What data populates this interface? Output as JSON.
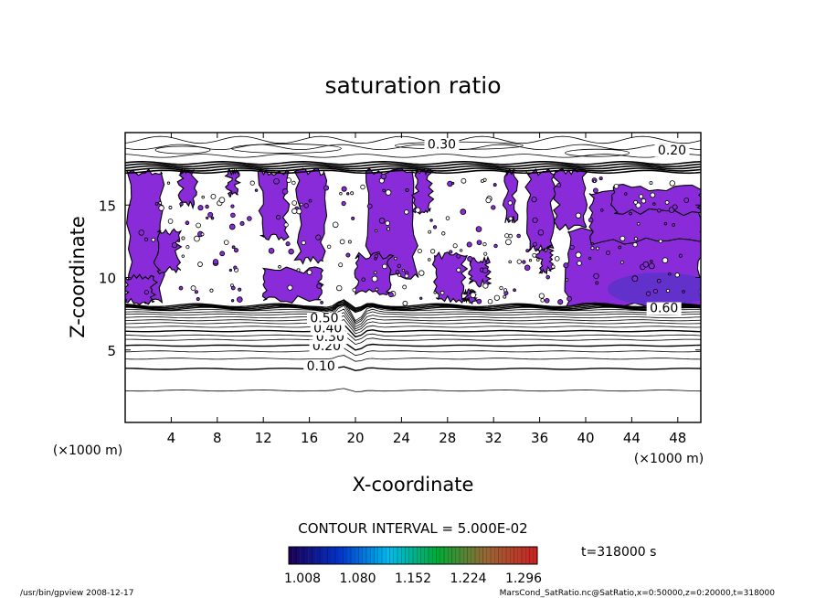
{
  "chart_data": {
    "type": "heatmap",
    "title": "saturation ratio",
    "xlabel": "X-coordinate",
    "ylabel": "Z-coordinate",
    "x_unit": "(×1000 m)",
    "z_unit": "(×1000 m)",
    "xlim": [
      0,
      50
    ],
    "ylim": [
      0,
      20
    ],
    "x_ticks": [
      4,
      8,
      12,
      16,
      20,
      24,
      28,
      32,
      36,
      40,
      44,
      48
    ],
    "y_ticks": [
      5,
      10,
      15
    ],
    "contour_interval_text": "CONTOUR INTERVAL = 5.000E-02",
    "contour_labels": [
      "0.30",
      "0.20",
      "0.10",
      "0.20",
      "0.30",
      "0.40",
      "0.50",
      "0.60"
    ],
    "colorbar": {
      "ticks": [
        "1.008",
        "1.080",
        "1.152",
        "1.224",
        "1.296"
      ],
      "min": 1.008,
      "max": 1.296,
      "colors_low_to_high": [
        "#1a005a",
        "#0033cc",
        "#00bbee",
        "#00aa33",
        "#996633",
        "#cc2222"
      ]
    },
    "time_label": "t=318000 s",
    "supersaturated_fill": "#8a2bd9",
    "supersaturated_fill_deep": "#5a33c8"
  },
  "footer": {
    "left": "/usr/bin/gpview   2008-12-17",
    "right": "MarsCond_SatRatio.nc@SatRatio,x=0:50000,z=0:20000,t=318000"
  }
}
